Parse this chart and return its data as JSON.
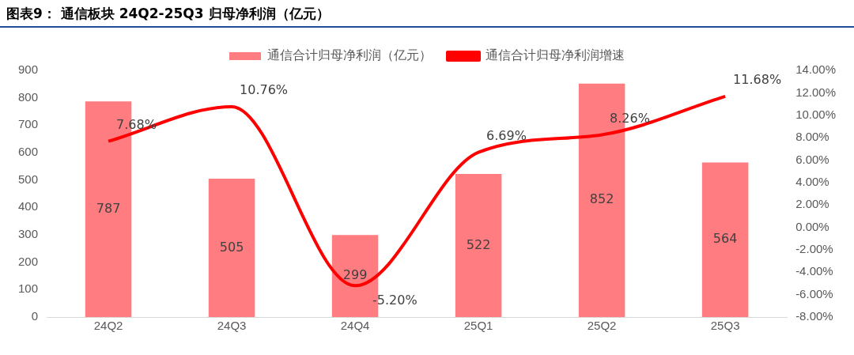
{
  "chart_data": {
    "type": "bar",
    "title": "图表9： 通信板块 24Q2-25Q3 归母净利润（亿元）",
    "categories": [
      "24Q2",
      "24Q3",
      "24Q4",
      "25Q1",
      "25Q2",
      "25Q3"
    ],
    "series": [
      {
        "name": "通信合计归母净利润（亿元）",
        "color": "#ff7c80",
        "values": [
          787,
          505,
          299,
          522,
          852,
          564
        ],
        "value_labels": [
          "787",
          "505",
          "299",
          "522",
          "852",
          "564"
        ]
      },
      {
        "name": "通信合计归母净利润增速",
        "type": "line",
        "axis": "y2",
        "color": "#ff0000",
        "values": [
          7.68,
          10.76,
          -5.2,
          6.69,
          8.26,
          11.68
        ],
        "value_labels": [
          "7.68%",
          "10.76%",
          "-5.20%",
          "6.69%",
          "8.26%",
          "11.68%"
        ]
      }
    ],
    "ylim": [
      0,
      900
    ],
    "yticks": [
      0,
      100,
      200,
      300,
      400,
      500,
      600,
      700,
      800,
      900
    ],
    "y2lim": [
      -8,
      14
    ],
    "y2ticks": [
      {
        "value": -8,
        "label": "-8.00%"
      },
      {
        "value": -6,
        "label": "-6.00%"
      },
      {
        "value": -4,
        "label": "-4.00%"
      },
      {
        "value": -2,
        "label": "-2.00%"
      },
      {
        "value": 0,
        "label": "0.00%"
      },
      {
        "value": 2,
        "label": "2.00%"
      },
      {
        "value": 4,
        "label": "4.00%"
      },
      {
        "value": 6,
        "label": "6.00%"
      },
      {
        "value": 8,
        "label": "8.00%"
      },
      {
        "value": 10,
        "label": "10.00%"
      },
      {
        "value": 12,
        "label": "12.00%"
      },
      {
        "value": 14,
        "label": "14.00%"
      }
    ],
    "grid": false,
    "legend": "top",
    "marker": "none",
    "line_style": "solid"
  }
}
